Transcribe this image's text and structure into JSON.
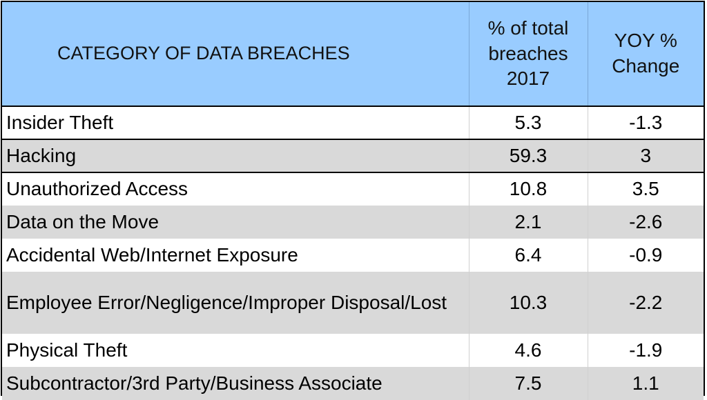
{
  "chart_data": {
    "type": "table",
    "columns": [
      "CATEGORY OF DATA BREACHES",
      "% of total breaches 2017",
      "YOY % Change"
    ],
    "header": {
      "category_label": "CATEGORY OF DATA BREACHES",
      "pct_label_lines": [
        "% of total",
        "breaches",
        "2017"
      ],
      "yoy_label_lines": [
        "YOY %",
        "Change"
      ]
    },
    "rows": [
      {
        "category": "Insider Theft",
        "pct_total_2017": "5.3",
        "yoy_change": "-1.3"
      },
      {
        "category": "Hacking",
        "pct_total_2017": "59.3",
        "yoy_change": "3"
      },
      {
        "category": "Unauthorized Access",
        "pct_total_2017": "10.8",
        "yoy_change": "3.5"
      },
      {
        "category": "Data on the Move",
        "pct_total_2017": "2.1",
        "yoy_change": "-2.6"
      },
      {
        "category": "Accidental Web/Internet Exposure",
        "pct_total_2017": "6.4",
        "yoy_change": "-0.9"
      },
      {
        "category": "Employee Error/Negligence/Improper Disposal/Lost",
        "pct_total_2017": "10.3",
        "yoy_change": "-2.2"
      },
      {
        "category": "Physical Theft",
        "pct_total_2017": "4.6",
        "yoy_change": "-1.9"
      },
      {
        "category": "Subcontractor/3rd Party/Business Associate",
        "pct_total_2017": "7.5",
        "yoy_change": "1.1"
      }
    ]
  },
  "colors": {
    "header_bg": "#99ccff",
    "stripe_bg": "#d9d9d9",
    "row_bg": "#ffffff",
    "border": "#000000"
  }
}
